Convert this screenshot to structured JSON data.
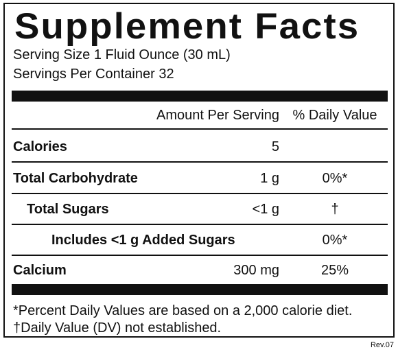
{
  "title": "Supplement Facts",
  "serving_size": "Serving Size 1 Fluid Ounce (30 mL)",
  "servings_per_container": "Servings Per Container 32",
  "header": {
    "amount": "Amount Per Serving",
    "daily_value": "% Daily Value"
  },
  "rows": [
    {
      "name": "Calories",
      "amount": "5"
    },
    {
      "name": "Total Carbohydrate",
      "amount": "1 g",
      "daily_value": "0%*"
    },
    {
      "name": "Total Sugars",
      "amount": "<1 g",
      "daily_value": "†"
    },
    {
      "name": "Includes <1 g Added Sugars",
      "daily_value": "0%*"
    },
    {
      "name": "Calcium",
      "amount": "300 mg",
      "daily_value": "25%"
    }
  ],
  "footnotes": [
    "*Percent Daily Values are based on a 2,000 calorie diet.",
    "†Daily Value (DV) not established."
  ],
  "revision": "Rev.07"
}
